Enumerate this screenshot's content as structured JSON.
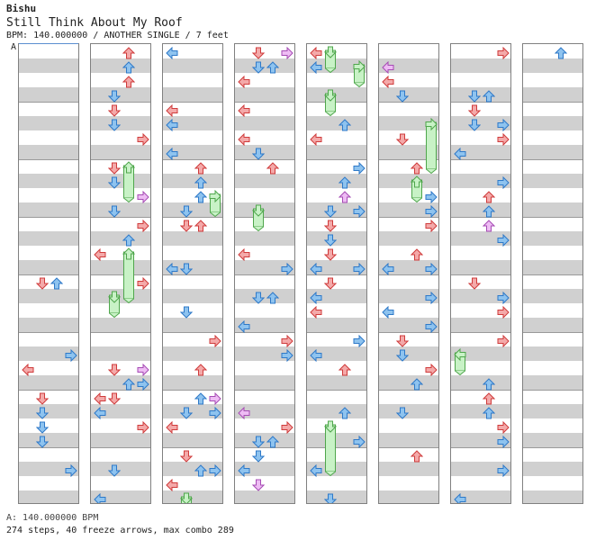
{
  "header": {
    "artist": "Bishu",
    "title": "Still Think About My Roof",
    "info": "BPM: 140.000000 / ANOTHER SINGLE / 7 feet"
  },
  "bpm_marker": "A",
  "footer": {
    "bpm_line": "A: 140.000000 BPM",
    "stats": "274 steps, 40 freeze arrows, max combo 289"
  },
  "colors": {
    "tap_red": "#f4a9a9",
    "tap_red_stroke": "#cf3b3b",
    "tap_blue": "#8ec3ef",
    "tap_blue_stroke": "#2e79c8",
    "tap_purple": "#eebcf4",
    "tap_purple_stroke": "#a64bb4",
    "freeze_fill": "#c8f2c6",
    "freeze_stroke": "#4fa64c",
    "band": "#d0d0d0",
    "border": "#808080"
  },
  "lanes": [
    "left",
    "down",
    "up",
    "right"
  ],
  "chart_data": {
    "type": "step-chart",
    "columns": 8,
    "measures_per_column": 4,
    "total_measures": 32,
    "steps": 274,
    "freeze_arrows": 40,
    "max_combo": 289,
    "bpm": 140.0
  }
}
